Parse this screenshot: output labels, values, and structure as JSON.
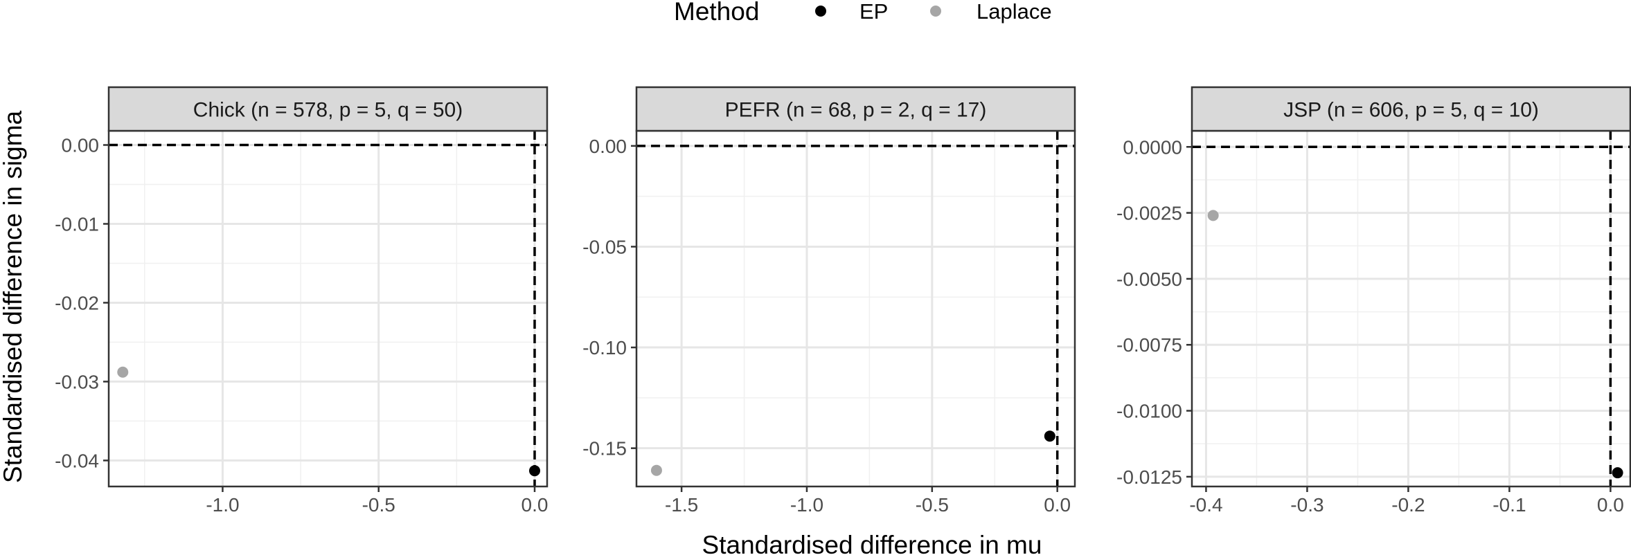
{
  "legend": {
    "title": "Method",
    "items": [
      {
        "label": "EP",
        "color": "#000000"
      },
      {
        "label": "Laplace",
        "color": "#a6a6a6"
      }
    ]
  },
  "xlabel": "Standardised difference in mu",
  "ylabel": "Standardised difference in sigma",
  "chart_data": [
    {
      "type": "scatter",
      "title": "Chick (n = 578, p = 5, q = 50)",
      "xlim": [
        -1.365,
        0.04
      ],
      "ylim": [
        -0.0433,
        0.0018
      ],
      "x_ticks": [
        -1.0,
        -0.5,
        0.0
      ],
      "x_tick_labels": [
        "-1.0",
        "-0.5",
        "0.0"
      ],
      "y_ticks": [
        0.0,
        -0.01,
        -0.02,
        -0.03,
        -0.04
      ],
      "y_tick_labels": [
        "0.00",
        "-0.01",
        "-0.02",
        "-0.03",
        "-0.04"
      ],
      "reference_lines": {
        "x": 0,
        "y": 0
      },
      "series": [
        {
          "name": "EP",
          "points": [
            {
              "x": 0.0,
              "y": -0.0413
            }
          ]
        },
        {
          "name": "Laplace",
          "points": [
            {
              "x": -1.32,
              "y": -0.0288
            }
          ]
        }
      ]
    },
    {
      "type": "scatter",
      "title": "PEFR (n = 68, p = 2, q = 17)",
      "xlim": [
        -1.68,
        0.07
      ],
      "ylim": [
        -0.169,
        0.0075
      ],
      "x_ticks": [
        -1.5,
        -1.0,
        -0.5,
        0.0
      ],
      "x_tick_labels": [
        "-1.5",
        "-1.0",
        "-0.5",
        "0.0"
      ],
      "y_ticks": [
        0.0,
        -0.05,
        -0.1,
        -0.15
      ],
      "y_tick_labels": [
        "0.00",
        "-0.05",
        "-0.10",
        "-0.15"
      ],
      "reference_lines": {
        "x": 0,
        "y": 0
      },
      "series": [
        {
          "name": "EP",
          "points": [
            {
              "x": -0.03,
              "y": -0.144
            }
          ]
        },
        {
          "name": "Laplace",
          "points": [
            {
              "x": -1.6,
              "y": -0.161
            }
          ]
        }
      ]
    },
    {
      "type": "scatter",
      "title": "JSP (n = 606, p = 5, q = 10)",
      "xlim": [
        -0.414,
        0.0196
      ],
      "ylim": [
        -0.01287,
        0.00061
      ],
      "x_ticks": [
        -0.4,
        -0.3,
        -0.2,
        -0.1,
        0.0
      ],
      "x_tick_labels": [
        "-0.4",
        "-0.3",
        "-0.2",
        "-0.1",
        "0.0"
      ],
      "y_ticks": [
        0.0,
        -0.0025,
        -0.005,
        -0.0075,
        -0.01,
        -0.0125
      ],
      "y_tick_labels": [
        "0.0000",
        "-0.0025",
        "-0.0050",
        "-0.0075",
        "-0.0100",
        "-0.0125"
      ],
      "reference_lines": {
        "x": 0,
        "y": 0
      },
      "series": [
        {
          "name": "EP",
          "points": [
            {
              "x": 0.007,
              "y": -0.01235
            }
          ]
        },
        {
          "name": "Laplace",
          "points": [
            {
              "x": -0.393,
              "y": -0.0026
            }
          ]
        }
      ]
    }
  ]
}
